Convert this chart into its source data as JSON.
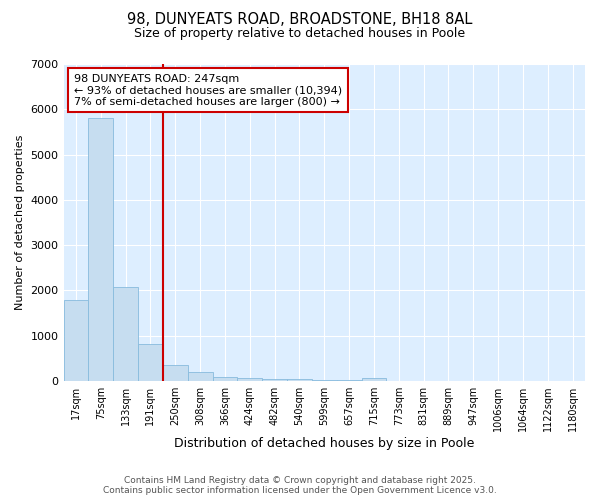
{
  "title_line1": "98, DUNYEATS ROAD, BROADSTONE, BH18 8AL",
  "title_line2": "Size of property relative to detached houses in Poole",
  "xlabel": "Distribution of detached houses by size in Poole",
  "ylabel": "Number of detached properties",
  "categories": [
    "17sqm",
    "75sqm",
    "133sqm",
    "191sqm",
    "250sqm",
    "308sqm",
    "366sqm",
    "424sqm",
    "482sqm",
    "540sqm",
    "599sqm",
    "657sqm",
    "715sqm",
    "773sqm",
    "831sqm",
    "889sqm",
    "947sqm",
    "1006sqm",
    "1064sqm",
    "1122sqm",
    "1180sqm"
  ],
  "values": [
    1780,
    5800,
    2080,
    820,
    350,
    200,
    100,
    65,
    55,
    35,
    30,
    20,
    70,
    5,
    3,
    2,
    2,
    1,
    1,
    1,
    1
  ],
  "bar_color": "#c6ddf0",
  "bar_edge_color": "#88bbdd",
  "redline_index": 4,
  "annotation_text": "98 DUNYEATS ROAD: 247sqm\n← 93% of detached houses are smaller (10,394)\n7% of semi-detached houses are larger (800) →",
  "annotation_box_color": "#ffffff",
  "annotation_box_edge_color": "#cc0000",
  "redline_color": "#cc0000",
  "ylim": [
    0,
    7000
  ],
  "yticks": [
    0,
    1000,
    2000,
    3000,
    4000,
    5000,
    6000,
    7000
  ],
  "footer_line1": "Contains HM Land Registry data © Crown copyright and database right 2025.",
  "footer_line2": "Contains public sector information licensed under the Open Government Licence v3.0.",
  "fig_bg_color": "#ffffff",
  "plot_bg_color": "#ddeeff"
}
